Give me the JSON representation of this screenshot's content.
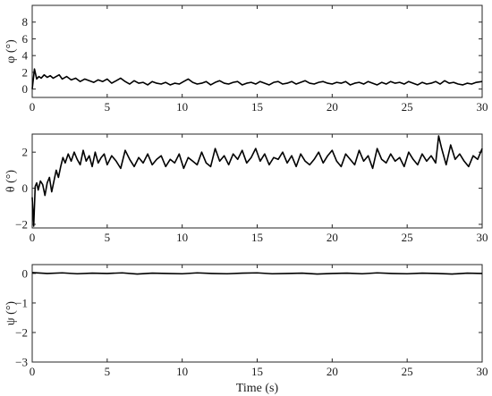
{
  "chart_data": [
    {
      "type": "line",
      "ylabel": "φ (°)",
      "xlabel": "",
      "xlim": [
        0,
        30
      ],
      "ylim": [
        -1,
        10
      ],
      "xticks": [
        0,
        5,
        10,
        15,
        20,
        25,
        30
      ],
      "yticks": [
        0,
        2,
        4,
        6,
        8
      ],
      "grid": false,
      "series": [
        {
          "color": "#000000",
          "x": [
            0,
            0.15,
            0.3,
            0.45,
            0.6,
            0.8,
            1,
            1.2,
            1.4,
            1.6,
            1.8,
            2,
            2.3,
            2.6,
            2.9,
            3.2,
            3.5,
            3.8,
            4.1,
            4.4,
            4.7,
            5,
            5.3,
            5.6,
            5.9,
            6.2,
            6.5,
            6.8,
            7.1,
            7.4,
            7.7,
            8,
            8.3,
            8.6,
            8.9,
            9.2,
            9.5,
            9.8,
            10.1,
            10.4,
            10.7,
            11,
            11.3,
            11.6,
            11.9,
            12.2,
            12.5,
            12.8,
            13.1,
            13.4,
            13.7,
            14,
            14.3,
            14.6,
            14.9,
            15.2,
            15.5,
            15.8,
            16.1,
            16.4,
            16.7,
            17,
            17.3,
            17.6,
            17.9,
            18.2,
            18.5,
            18.8,
            19.1,
            19.4,
            19.7,
            20,
            20.3,
            20.6,
            20.9,
            21.2,
            21.5,
            21.8,
            22.1,
            22.4,
            22.7,
            23,
            23.3,
            23.6,
            23.9,
            24.2,
            24.5,
            24.8,
            25.1,
            25.4,
            25.7,
            26,
            26.3,
            26.6,
            26.9,
            27.2,
            27.5,
            27.8,
            28.1,
            28.4,
            28.7,
            29,
            29.3,
            29.6,
            30
          ],
          "y": [
            0,
            2.4,
            1.2,
            1.5,
            1.3,
            1.7,
            1.4,
            1.6,
            1.3,
            1.5,
            1.7,
            1.2,
            1.5,
            1.1,
            1.3,
            0.9,
            1.2,
            1.0,
            0.8,
            1.1,
            0.9,
            1.2,
            0.7,
            1.0,
            1.3,
            0.9,
            0.6,
            1.0,
            0.7,
            0.8,
            0.5,
            0.9,
            0.7,
            0.6,
            0.8,
            0.5,
            0.7,
            0.6,
            0.9,
            1.2,
            0.8,
            0.6,
            0.7,
            0.9,
            0.5,
            0.8,
            1.0,
            0.7,
            0.6,
            0.8,
            0.9,
            0.5,
            0.7,
            0.8,
            0.6,
            0.9,
            0.7,
            0.5,
            0.8,
            0.9,
            0.6,
            0.7,
            0.9,
            0.6,
            0.8,
            1.0,
            0.7,
            0.6,
            0.8,
            0.9,
            0.7,
            0.6,
            0.8,
            0.7,
            0.9,
            0.5,
            0.7,
            0.8,
            0.6,
            0.9,
            0.7,
            0.5,
            0.8,
            0.6,
            0.9,
            0.7,
            0.8,
            0.6,
            0.9,
            0.7,
            0.5,
            0.8,
            0.6,
            0.7,
            0.9,
            0.6,
            1.0,
            0.7,
            0.8,
            0.6,
            0.5,
            0.7,
            0.6,
            0.8,
            0.9
          ]
        }
      ]
    },
    {
      "type": "line",
      "ylabel": "θ (°)",
      "xlabel": "",
      "xlim": [
        0,
        30
      ],
      "ylim": [
        -2.2,
        3
      ],
      "xticks": [
        0,
        5,
        10,
        15,
        20,
        25,
        30
      ],
      "yticks": [
        -2,
        0,
        2
      ],
      "grid": false,
      "series": [
        {
          "color": "#000000",
          "x": [
            0,
            0.1,
            0.2,
            0.3,
            0.4,
            0.55,
            0.7,
            0.85,
            1,
            1.15,
            1.3,
            1.45,
            1.6,
            1.75,
            1.9,
            2.05,
            2.2,
            2.4,
            2.6,
            2.8,
            3,
            3.2,
            3.4,
            3.6,
            3.8,
            4,
            4.2,
            4.4,
            4.6,
            4.8,
            5,
            5.3,
            5.6,
            5.9,
            6.2,
            6.5,
            6.8,
            7.1,
            7.4,
            7.7,
            8,
            8.3,
            8.6,
            8.9,
            9.2,
            9.5,
            9.8,
            10.1,
            10.4,
            10.7,
            11,
            11.3,
            11.6,
            11.9,
            12.2,
            12.5,
            12.8,
            13.1,
            13.4,
            13.7,
            14,
            14.3,
            14.6,
            14.9,
            15.2,
            15.5,
            15.8,
            16.1,
            16.4,
            16.7,
            17,
            17.3,
            17.6,
            17.9,
            18.2,
            18.5,
            18.8,
            19.1,
            19.4,
            19.7,
            20,
            20.3,
            20.6,
            20.9,
            21.2,
            21.5,
            21.8,
            22.1,
            22.4,
            22.7,
            23,
            23.3,
            23.6,
            23.9,
            24.2,
            24.5,
            24.8,
            25.1,
            25.4,
            25.7,
            26,
            26.3,
            26.6,
            26.9,
            27.1,
            27.3,
            27.6,
            27.9,
            28.2,
            28.5,
            28.8,
            29.1,
            29.4,
            29.7,
            30
          ],
          "y": [
            -0.5,
            -2.1,
            0.1,
            0.3,
            -0.1,
            0.4,
            0.2,
            -0.4,
            0.3,
            0.6,
            -0.2,
            0.4,
            1.0,
            0.6,
            1.2,
            1.7,
            1.4,
            1.9,
            1.5,
            2.0,
            1.6,
            1.3,
            2.1,
            1.5,
            1.8,
            1.2,
            2.0,
            1.4,
            1.7,
            1.9,
            1.3,
            1.8,
            1.5,
            1.1,
            2.1,
            1.6,
            1.2,
            1.7,
            1.4,
            1.9,
            1.3,
            1.6,
            1.8,
            1.2,
            1.6,
            1.4,
            1.9,
            1.1,
            1.7,
            1.5,
            1.3,
            2.0,
            1.4,
            1.2,
            2.2,
            1.5,
            1.8,
            1.3,
            1.9,
            1.6,
            2.1,
            1.4,
            1.7,
            2.2,
            1.5,
            1.9,
            1.3,
            1.7,
            1.6,
            2.0,
            1.4,
            1.8,
            1.2,
            1.9,
            1.5,
            1.3,
            1.6,
            2.0,
            1.4,
            1.8,
            2.1,
            1.5,
            1.2,
            1.9,
            1.6,
            1.3,
            2.1,
            1.5,
            1.8,
            1.1,
            2.2,
            1.6,
            1.4,
            1.9,
            1.5,
            1.7,
            1.2,
            2.0,
            1.6,
            1.3,
            1.9,
            1.5,
            1.8,
            1.4,
            2.9,
            2.2,
            1.3,
            2.4,
            1.6,
            1.9,
            1.5,
            1.2,
            1.8,
            1.6,
            2.2
          ]
        }
      ]
    },
    {
      "type": "line",
      "ylabel": "ψ (°)",
      "xlabel": "Time (s)",
      "xlim": [
        0,
        30
      ],
      "ylim": [
        -3,
        0.3
      ],
      "xticks": [
        0,
        5,
        10,
        15,
        20,
        25,
        30
      ],
      "yticks": [
        -3,
        -2,
        -1,
        0
      ],
      "grid": false,
      "series": [
        {
          "color": "#000000",
          "x": [
            0,
            1,
            2,
            3,
            4,
            5,
            6,
            7,
            8,
            9,
            10,
            11,
            12,
            13,
            14,
            15,
            16,
            17,
            18,
            19,
            20,
            21,
            22,
            23,
            24,
            25,
            26,
            27,
            28,
            29,
            30
          ],
          "y": [
            0.03,
            0.0,
            0.02,
            -0.01,
            0.01,
            0.0,
            0.02,
            -0.02,
            0.01,
            0.0,
            -0.01,
            0.02,
            0.0,
            -0.01,
            0.01,
            0.02,
            -0.01,
            0.0,
            0.01,
            -0.02,
            0.0,
            0.01,
            -0.01,
            0.02,
            0.0,
            -0.01,
            0.01,
            0.0,
            -0.02,
            0.01,
            0.0
          ]
        }
      ]
    }
  ]
}
